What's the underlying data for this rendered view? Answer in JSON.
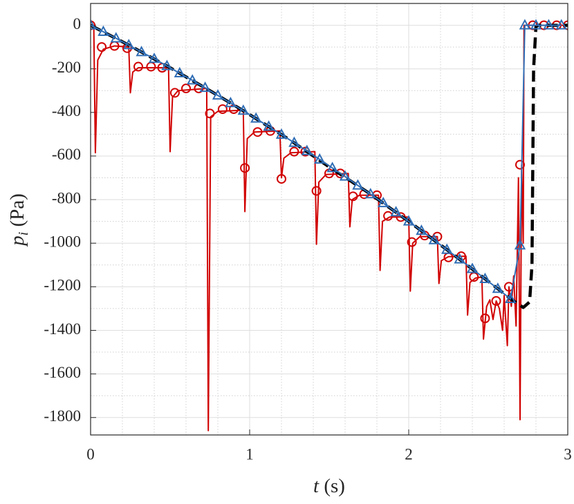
{
  "chart_data": {
    "type": "line",
    "xlabel_symbol": "t",
    "xlabel_unit": "(s)",
    "ylabel_symbol": "p",
    "ylabel_subscript": "i",
    "ylabel_unit": "(Pa)",
    "xlim": [
      0,
      3
    ],
    "xticks": [
      0,
      1,
      2,
      3
    ],
    "ylim": [
      -1880,
      100
    ],
    "yticks": [
      0,
      -200,
      -400,
      -600,
      -800,
      -1000,
      -1200,
      -1400,
      -1600,
      -1800
    ],
    "xminorticks": [
      0.2,
      0.4,
      0.6,
      0.8,
      1.2,
      1.4,
      1.6,
      1.8,
      2.2,
      2.4,
      2.6,
      2.8
    ],
    "yminorticks": [
      -100,
      -300,
      -500,
      -700,
      -900,
      -1100,
      -1300,
      -1500,
      -1700
    ],
    "grid": true,
    "series": [
      {
        "color": "#d10000",
        "line": "solid",
        "marker": "none",
        "x": [
          0,
          0.02,
          0.03,
          0.045,
          0.08,
          0.15,
          0.24,
          0.25,
          0.265,
          0.3,
          0.49,
          0.5,
          0.515,
          0.55,
          0.73,
          0.74,
          0.755,
          0.8,
          0.96,
          0.97,
          0.985,
          1.03,
          1.19,
          1.2,
          1.215,
          1.26,
          1.41,
          1.42,
          1.435,
          1.48,
          1.62,
          1.63,
          1.645,
          1.69,
          1.81,
          1.82,
          1.835,
          1.88,
          2.0,
          2.01,
          2.025,
          2.07,
          2.18,
          2.19,
          2.205,
          2.25,
          2.36,
          2.37,
          2.385,
          2.42,
          2.46,
          2.47,
          2.49,
          2.51,
          2.53,
          2.55,
          2.57,
          2.59,
          2.6,
          2.62,
          2.63,
          2.645,
          2.66,
          2.675,
          2.69,
          2.7,
          2.71,
          2.72,
          2.725,
          3.0
        ],
        "values": [
          0,
          0,
          -585,
          -160,
          -110,
          -95,
          -100,
          -310,
          -215,
          -195,
          -195,
          -580,
          -330,
          -300,
          -290,
          -1860,
          -420,
          -395,
          -390,
          -855,
          -520,
          -490,
          -485,
          -700,
          -610,
          -585,
          -580,
          -1005,
          -720,
          -685,
          -680,
          -925,
          -800,
          -780,
          -780,
          -1125,
          -900,
          -880,
          -880,
          -1220,
          -1000,
          -970,
          -970,
          -1185,
          -1080,
          -1062,
          -1060,
          -1330,
          -1180,
          -1160,
          -1155,
          -1440,
          -1290,
          -1260,
          -1350,
          -1265,
          -1300,
          -1400,
          -1240,
          -1470,
          -1200,
          -1290,
          -1150,
          -1380,
          -700,
          -1810,
          -640,
          -1000,
          0,
          0
        ]
      },
      {
        "color": "#d10000",
        "line": "none",
        "marker": "circle",
        "x": [
          0,
          0.07,
          0.15,
          0.23,
          0.3,
          0.38,
          0.45,
          0.53,
          0.6,
          0.68,
          0.75,
          0.83,
          0.9,
          0.97,
          1.05,
          1.13,
          1.2,
          1.28,
          1.35,
          1.42,
          1.5,
          1.57,
          1.65,
          1.72,
          1.8,
          1.87,
          1.95,
          2.02,
          2.1,
          2.18,
          2.25,
          2.33,
          2.41,
          2.48,
          2.55,
          2.63,
          2.7,
          2.78,
          2.85,
          2.93,
          3.0
        ],
        "values": [
          0,
          -100,
          -95,
          -105,
          -190,
          -190,
          -195,
          -310,
          -290,
          -290,
          -405,
          -385,
          -385,
          -655,
          -490,
          -485,
          -705,
          -580,
          -580,
          -760,
          -680,
          -680,
          -785,
          -775,
          -780,
          -875,
          -880,
          -995,
          -965,
          -970,
          -1065,
          -1060,
          -1155,
          -1345,
          -1265,
          -1200,
          -640,
          0,
          0,
          0,
          0
        ]
      },
      {
        "color": "#000000",
        "line": "dashed",
        "marker": "none",
        "x": [
          0,
          0.25,
          0.5,
          0.75,
          1,
          1.25,
          1.5,
          1.75,
          2,
          2.25,
          2.5,
          2.65,
          2.72,
          2.76,
          2.775,
          2.785,
          2.8,
          2.82,
          3
        ],
        "values": [
          0,
          -95,
          -195,
          -300,
          -410,
          -525,
          -650,
          -770,
          -900,
          -1035,
          -1175,
          -1260,
          -1295,
          -1270,
          -1100,
          -200,
          -5,
          0,
          0
        ]
      },
      {
        "color": "#2f6db5",
        "line": "solid",
        "marker": "triangle",
        "x": [
          0,
          0.08,
          0.16,
          0.24,
          0.32,
          0.4,
          0.48,
          0.56,
          0.64,
          0.72,
          0.8,
          0.88,
          0.96,
          1.04,
          1.12,
          1.2,
          1.28,
          1.36,
          1.44,
          1.52,
          1.6,
          1.68,
          1.76,
          1.84,
          1.92,
          2.0,
          2.08,
          2.16,
          2.24,
          2.32,
          2.4,
          2.48,
          2.56,
          2.64,
          2.7,
          2.73,
          2.8,
          2.88,
          2.96
        ],
        "values": [
          0,
          -30,
          -60,
          -91,
          -123,
          -154,
          -187,
          -220,
          -253,
          -287,
          -322,
          -357,
          -392,
          -428,
          -465,
          -502,
          -539,
          -577,
          -616,
          -655,
          -694,
          -735,
          -775,
          -816,
          -858,
          -900,
          -943,
          -986,
          -1030,
          -1074,
          -1118,
          -1164,
          -1209,
          -1256,
          -1010,
          0,
          0,
          0,
          0
        ]
      }
    ]
  }
}
